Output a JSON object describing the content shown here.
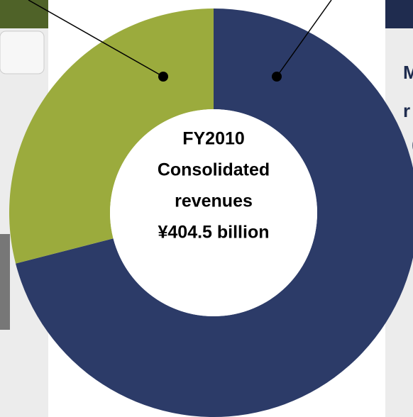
{
  "chart_data": {
    "type": "donut",
    "center_label": [
      "FY2010",
      "Consolidated",
      "revenues",
      "¥404.5 billion"
    ],
    "values": [
      71,
      29
    ],
    "colors": [
      "#2c3b68",
      "#9bab3d"
    ],
    "side_text": [
      "M",
      "r",
      "("
    ]
  }
}
